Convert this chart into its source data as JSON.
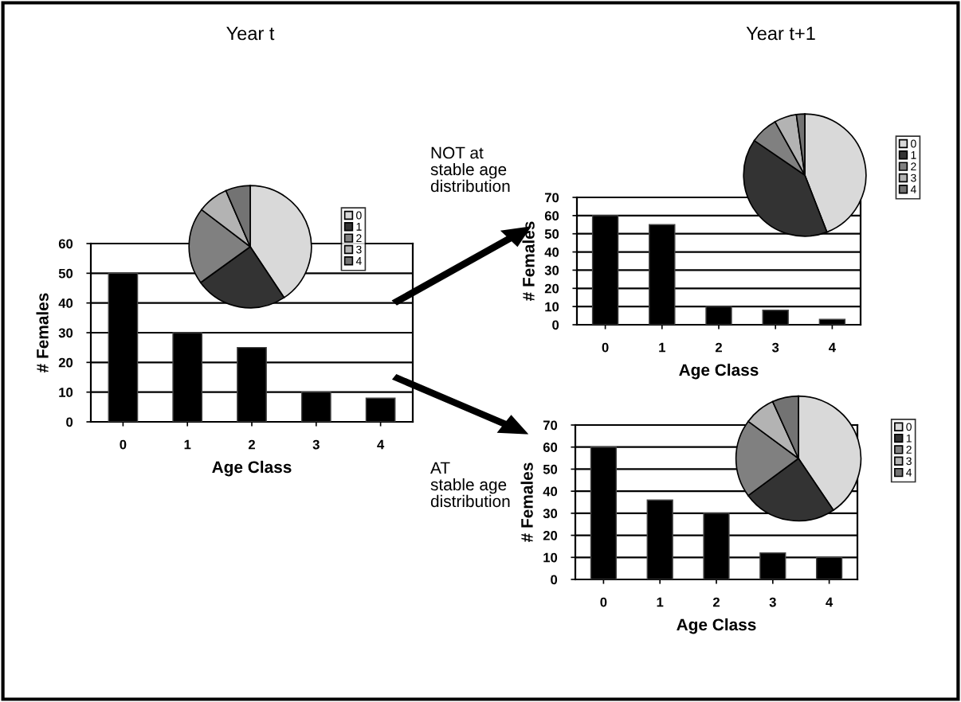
{
  "chart_data": [
    {
      "type": "bar",
      "title": "Year t",
      "categories": [
        "0",
        "1",
        "2",
        "3",
        "4"
      ],
      "values": [
        50,
        30,
        25,
        10,
        8
      ],
      "color": "#000000",
      "xlabel": "Age Class",
      "ylabel": "# Females",
      "ylim": [
        0,
        60
      ],
      "yticks": [
        0,
        10,
        20,
        30,
        40,
        50,
        60
      ],
      "grid": "y"
    },
    {
      "type": "pie",
      "categories": [
        "0",
        "1",
        "2",
        "3",
        "4"
      ],
      "values": [
        40.65,
        24.39,
        20.33,
        8.13,
        6.5
      ],
      "colors": [
        "#d9d9d9",
        "#333333",
        "#808080",
        "#b3b3b3",
        "#737373"
      ],
      "legend": "right"
    },
    {
      "type": "bar",
      "title": "Year t+1",
      "annotations": [
        "NOT at\nstable age\ndistribution"
      ],
      "categories": [
        "0",
        "1",
        "2",
        "3",
        "4"
      ],
      "values": [
        60,
        55,
        10,
        8,
        3
      ],
      "color": "#000000",
      "xlabel": "Age Class",
      "ylabel": "# Females",
      "ylim": [
        0,
        70
      ],
      "yticks": [
        0,
        10,
        20,
        30,
        40,
        50,
        60,
        70
      ],
      "grid": "y"
    },
    {
      "type": "pie",
      "categories": [
        "0",
        "1",
        "2",
        "3",
        "4"
      ],
      "values": [
        44.12,
        40.44,
        7.35,
        5.88,
        2.21
      ],
      "colors": [
        "#d9d9d9",
        "#333333",
        "#808080",
        "#b3b3b3",
        "#737373"
      ],
      "legend": "right"
    },
    {
      "type": "bar",
      "annotations": [
        "AT\nstable age\ndistribution"
      ],
      "categories": [
        "0",
        "1",
        "2",
        "3",
        "4"
      ],
      "values": [
        60,
        36,
        30,
        12,
        10
      ],
      "color": "#000000",
      "xlabel": "Age Class",
      "ylabel": "# Females",
      "ylim": [
        0,
        70
      ],
      "yticks": [
        0,
        10,
        20,
        30,
        40,
        50,
        60,
        70
      ],
      "grid": "y"
    },
    {
      "type": "pie",
      "categories": [
        "0",
        "1",
        "2",
        "3",
        "4"
      ],
      "values": [
        40.54,
        24.32,
        20.27,
        8.11,
        6.76
      ],
      "colors": [
        "#d9d9d9",
        "#333333",
        "#808080",
        "#b3b3b3",
        "#737373"
      ],
      "legend": "right"
    }
  ]
}
